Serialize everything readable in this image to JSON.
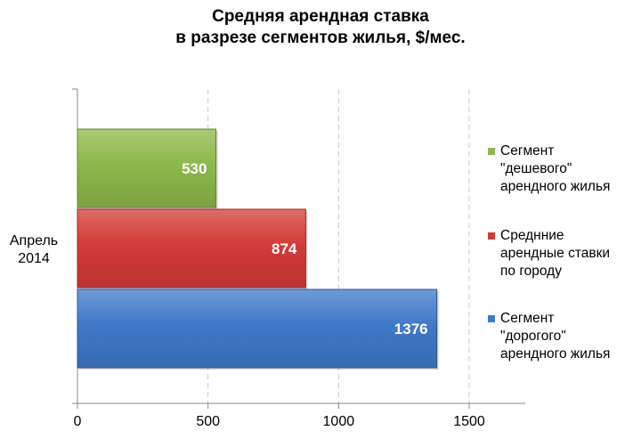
{
  "chart_data": {
    "type": "bar",
    "orientation": "horizontal",
    "title_lines": [
      "Средняя арендная ставка",
      "в разрезе сегментов жилья, $/мес."
    ],
    "category_label": [
      "Апрель",
      "2014"
    ],
    "xlim": [
      0,
      1500
    ],
    "xticks": [
      "0",
      "500",
      "1000",
      "1500"
    ],
    "grid": true,
    "legend_position": "right",
    "series": [
      {
        "name": "Сегмент\n\"дешевого\"\nарендного жилья",
        "value": 530,
        "label": "530",
        "color": "#8DB84A"
      },
      {
        "name": "Среднние\nарендные ставки\nпо городу",
        "value": 874,
        "label": "874",
        "color": "#D33B38"
      },
      {
        "name": "Сегмент\n\"дорогого\"\nарендного жилья",
        "value": 1376,
        "label": "1376",
        "color": "#3F79C9"
      }
    ]
  }
}
